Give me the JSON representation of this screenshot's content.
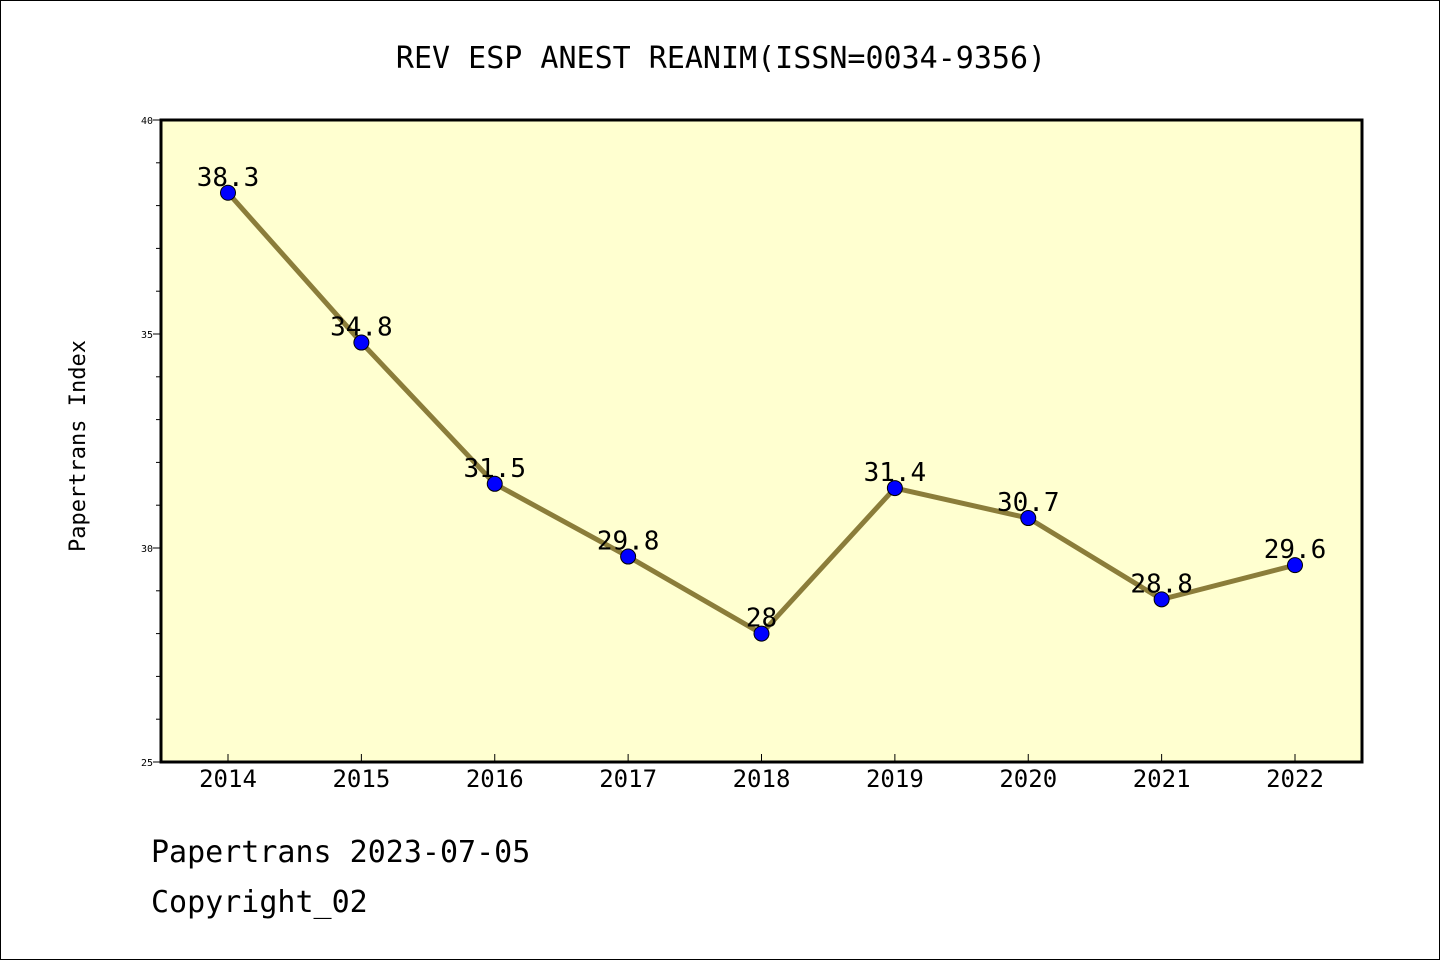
{
  "chart_data": {
    "type": "line",
    "title": "REV ESP ANEST REANIM(ISSN=0034-9356)",
    "xlabel": "",
    "ylabel": "Papertrans Index",
    "categories": [
      "2014",
      "2015",
      "2016",
      "2017",
      "2018",
      "2019",
      "2020",
      "2021",
      "2022"
    ],
    "series": [
      {
        "values": [
          38.3,
          34.8,
          31.5,
          29.8,
          28,
          31.4,
          30.7,
          28.8,
          29.6
        ],
        "point_labels": [
          "38.3",
          "34.8",
          "31.5",
          "29.8",
          "28",
          "31.4",
          "30.7",
          "28.8",
          "29.6"
        ]
      }
    ],
    "ylim": [
      25,
      40
    ],
    "y_major_ticks": [
      "25",
      "30",
      "35",
      "40"
    ],
    "y_minor_step": 1,
    "grid": false,
    "legend": "none",
    "colors": {
      "plot_background": "#ffffd0",
      "line": "#8b7d3a",
      "marker": "#0000ff",
      "marker_edge": "#000000"
    }
  },
  "footer": {
    "line1": "Papertrans 2023-07-05",
    "line2": "Copyright_02"
  }
}
